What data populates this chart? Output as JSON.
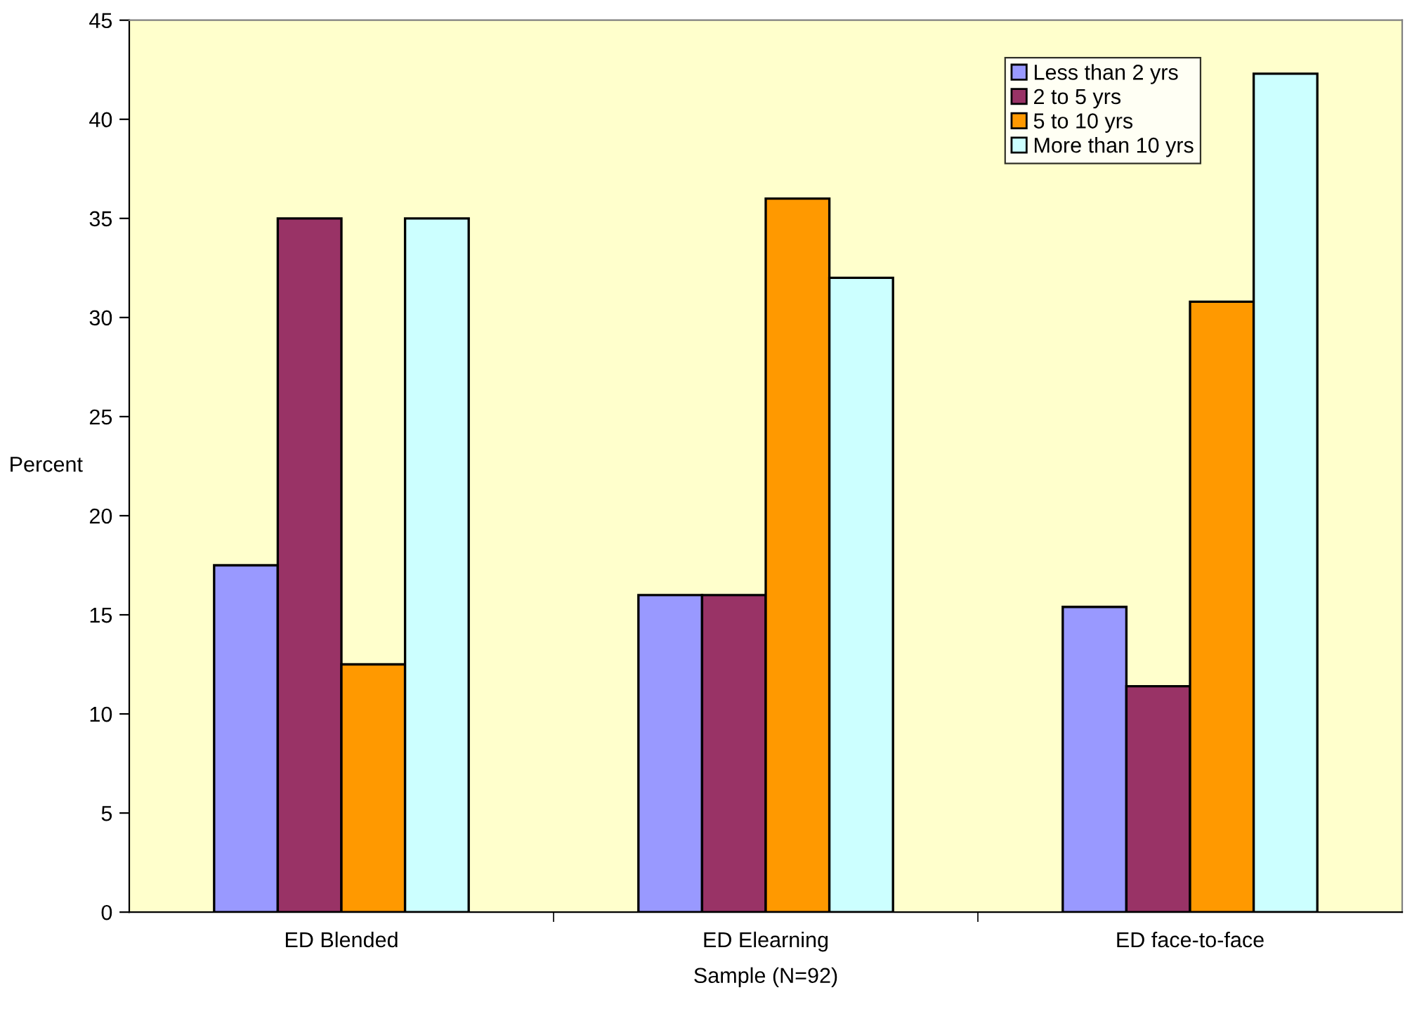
{
  "chart_data": {
    "type": "bar",
    "xlabel": "Sample (N=92)",
    "ylabel": "Percent",
    "categories": [
      "ED Blended",
      "ED Elearning",
      "ED face-to-face"
    ],
    "series": [
      {
        "name": "Less than 2 yrs",
        "color": "#9999ff",
        "values": [
          17.5,
          16.0,
          15.4
        ]
      },
      {
        "name": "2 to 5 yrs",
        "color": "#993366",
        "values": [
          35.0,
          16.0,
          11.4
        ]
      },
      {
        "name": "5 to 10 yrs",
        "color": "#ff9900",
        "values": [
          12.5,
          36.0,
          30.8
        ]
      },
      {
        "name": "More than 10 yrs",
        "color": "#ccffff",
        "values": [
          35.0,
          32.0,
          42.3
        ]
      }
    ],
    "ylim": [
      0,
      45
    ],
    "yticks": [
      0,
      5,
      10,
      15,
      20,
      25,
      30,
      35,
      40,
      45
    ],
    "grid": false,
    "legend": "top right"
  }
}
